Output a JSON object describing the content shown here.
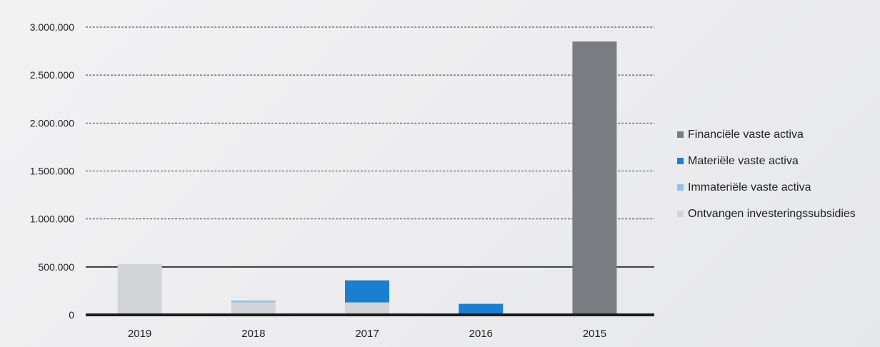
{
  "chart_data": {
    "type": "bar",
    "stacked": true,
    "categories": [
      "2019",
      "2018",
      "2017",
      "2016",
      "2015"
    ],
    "series": [
      {
        "name": "Ontvangen investeringssubsidies",
        "color": "#d3d4d8",
        "values": [
          530000,
          130000,
          130000,
          0,
          0
        ]
      },
      {
        "name": "Immateriële vaste activa",
        "color": "#8fc4e8",
        "values": [
          0,
          20000,
          0,
          0,
          0
        ]
      },
      {
        "name": "Materiële vaste activa",
        "color": "#1a7fd0",
        "values": [
          0,
          0,
          230000,
          115000,
          0
        ]
      },
      {
        "name": "Financiële vaste activa",
        "color": "#7b7b82",
        "values": [
          0,
          0,
          0,
          0,
          2850000
        ]
      }
    ],
    "legend_order": [
      "Financiële vaste activa",
      "Materiële vaste activa",
      "Immateriële vaste activa",
      "Ontvangen investeringssubsidies"
    ],
    "yticks": [
      0,
      500000,
      1000000,
      1500000,
      2000000,
      2500000,
      3000000
    ],
    "ytick_labels": [
      "0",
      "500.000",
      "1.000.000",
      "1.500.000",
      "2.000.000",
      "2.500.000",
      "3.000.000"
    ],
    "ylim": [
      0,
      3000000
    ],
    "grid": true,
    "legend_position": "right"
  }
}
